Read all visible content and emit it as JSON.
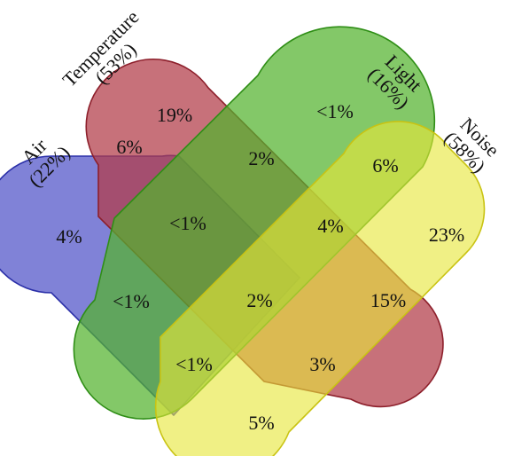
{
  "sets": [
    {
      "key": "air",
      "name": "Air",
      "percent": "(22%)",
      "fill": "#4f52c8",
      "stroke": "#2a2fa8"
    },
    {
      "key": "temperature",
      "name": "Temperature",
      "percent": "(53%)",
      "fill": "#b13a46",
      "stroke": "#8d1f2b"
    },
    {
      "key": "light",
      "name": "Light",
      "percent": "(16%)",
      "fill": "#53b32e",
      "stroke": "#2f8e16"
    },
    {
      "key": "noise",
      "name": "Noise",
      "percent": "(58%)",
      "fill": "#e7e63a",
      "stroke": "#c9c313"
    }
  ],
  "regions": [
    {
      "key": "temperature_only",
      "label": "19%"
    },
    {
      "key": "light_only",
      "label": "<1%"
    },
    {
      "key": "air_temperature",
      "label": "6%"
    },
    {
      "key": "temperature_light",
      "label": "2%"
    },
    {
      "key": "light_noise",
      "label": "6%"
    },
    {
      "key": "air_only",
      "label": "4%"
    },
    {
      "key": "air_temperature_light",
      "label": "<1%"
    },
    {
      "key": "temperature_light_noise",
      "label": "4%"
    },
    {
      "key": "noise_only",
      "label": "23%"
    },
    {
      "key": "air_light",
      "label": "<1%"
    },
    {
      "key": "all_four",
      "label": "2%"
    },
    {
      "key": "temperature_noise",
      "label": "15%"
    },
    {
      "key": "air_light_noise",
      "label": "<1%"
    },
    {
      "key": "air_temperature_noise",
      "label": "3%"
    },
    {
      "key": "air_noise",
      "label": "5%"
    }
  ]
}
